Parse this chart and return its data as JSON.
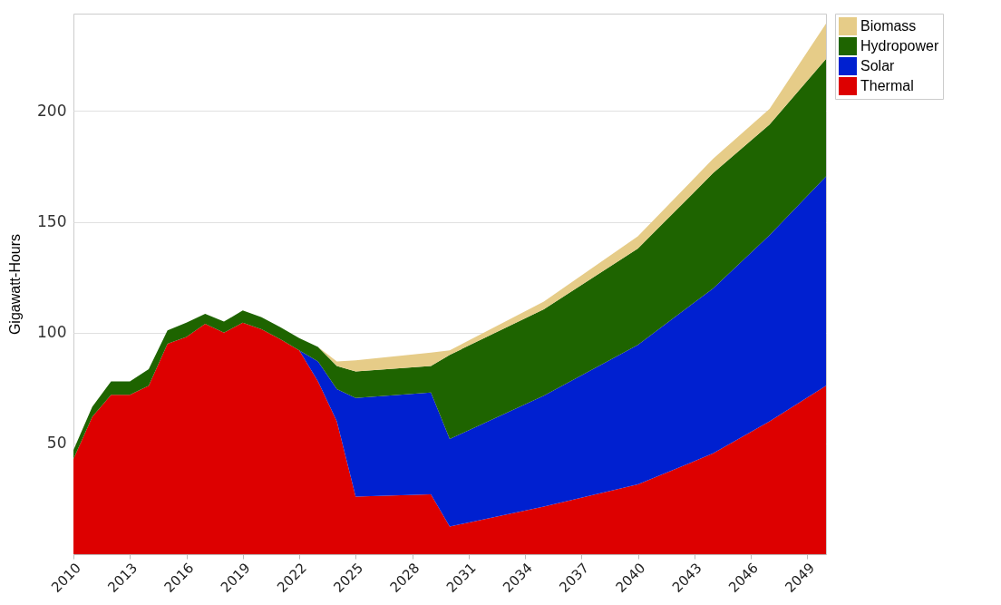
{
  "chart_data": {
    "type": "area",
    "stacked": true,
    "ylabel": "Gigawatt-Hours",
    "x": [
      2010,
      2011,
      2012,
      2013,
      2014,
      2015,
      2016,
      2017,
      2018,
      2019,
      2020,
      2021,
      2022,
      2023,
      2024,
      2025,
      2029,
      2030,
      2035,
      2040,
      2044,
      2047,
      2050
    ],
    "series": [
      {
        "name": "Thermal",
        "color": "#dd0000",
        "values": [
          43,
          62,
          72,
          72,
          76,
          95,
          98,
          104,
          100,
          104.5,
          101.5,
          97,
          92,
          78,
          60,
          26,
          27,
          12.5,
          21.5,
          31.5,
          45.5,
          60,
          76
        ]
      },
      {
        "name": "Solar",
        "color": "#0020d0",
        "values": [
          0,
          0,
          0,
          0,
          0,
          0,
          0,
          0,
          0,
          0,
          0,
          0,
          0,
          9,
          14.5,
          44.5,
          46,
          39.5,
          50,
          63,
          74.5,
          84,
          94.5
        ]
      },
      {
        "name": "Hydropower",
        "color": "#1e6400",
        "values": [
          4,
          4.5,
          6,
          6,
          7.5,
          6,
          6.5,
          4.5,
          5,
          5.5,
          5.5,
          5.5,
          5.5,
          6.5,
          10.5,
          12,
          12,
          38,
          39,
          43.5,
          52,
          50,
          53
        ]
      },
      {
        "name": "Biomass",
        "color": "#e6cc88",
        "values": [
          0,
          0,
          0,
          0,
          0,
          0,
          0,
          0,
          0,
          0,
          0,
          0,
          0,
          0,
          2,
          5,
          6,
          2,
          3.5,
          5.5,
          6.5,
          7,
          16
        ]
      }
    ],
    "xlim": [
      2010,
      2050
    ],
    "xticks": [
      2010,
      2013,
      2016,
      2019,
      2022,
      2025,
      2028,
      2031,
      2034,
      2037,
      2040,
      2043,
      2046,
      2049
    ],
    "ylim": [
      0,
      244
    ],
    "yticks": [
      50,
      100,
      150,
      200
    ],
    "grid": "y",
    "legend": "top right"
  }
}
